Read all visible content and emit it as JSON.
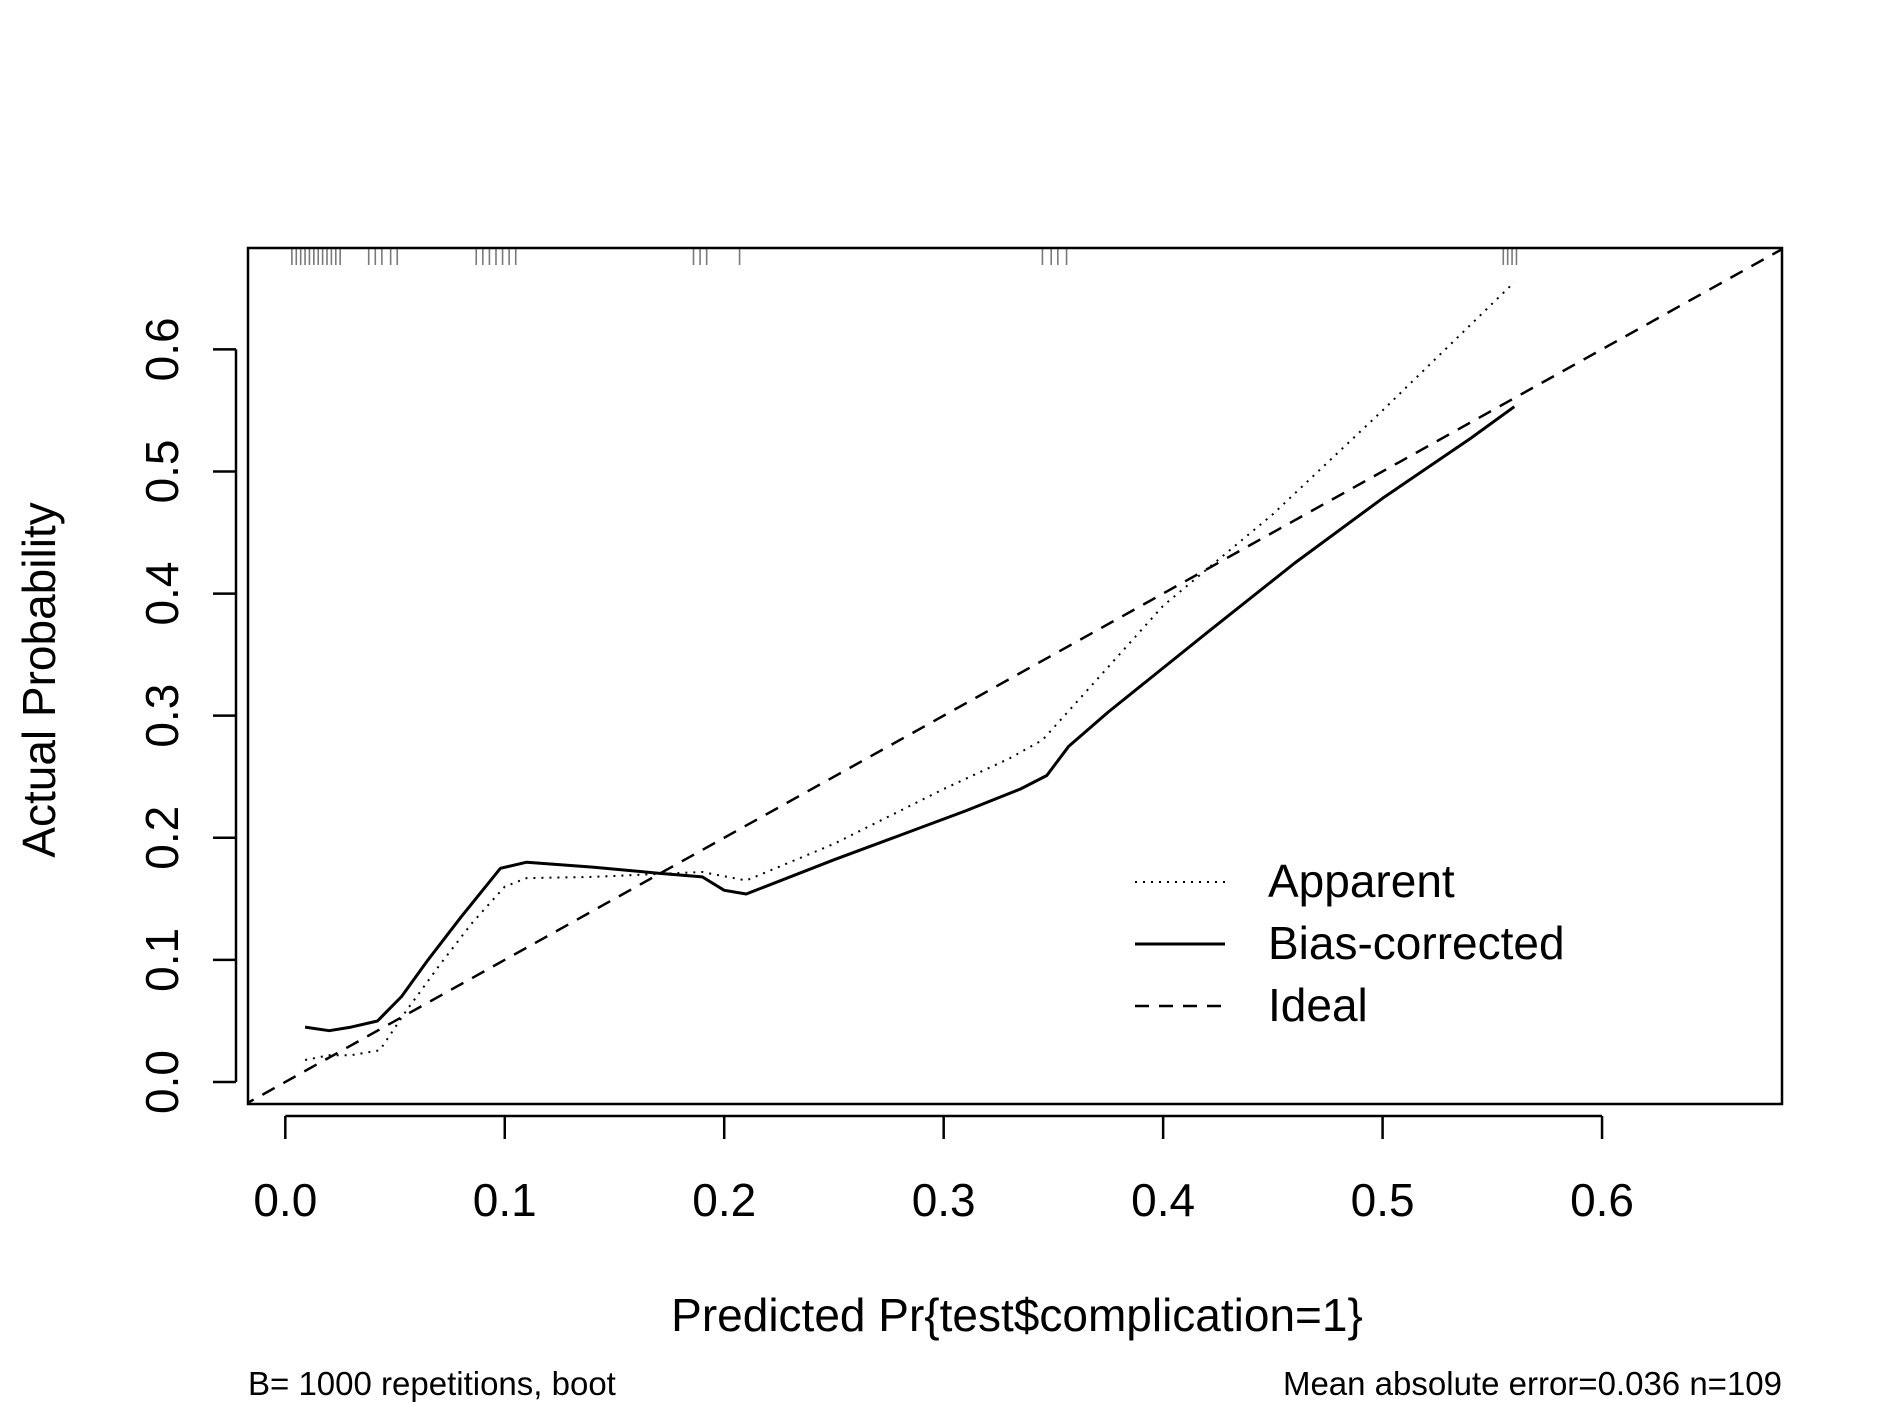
{
  "chart_data": {
    "type": "line",
    "title": "",
    "xlabel": "Predicted Pr{test$complication=1}",
    "ylabel": "Actual Probability",
    "xlim": [
      -0.017,
      0.682
    ],
    "ylim": [
      -0.018,
      0.683
    ],
    "x_ticks": [
      0.0,
      0.1,
      0.2,
      0.3,
      0.4,
      0.5,
      0.6
    ],
    "x_tick_labels": [
      "0.0",
      "0.1",
      "0.2",
      "0.3",
      "0.4",
      "0.5",
      "0.6"
    ],
    "y_ticks": [
      0.0,
      0.1,
      0.2,
      0.3,
      0.4,
      0.5,
      0.6
    ],
    "y_tick_labels": [
      "0.0",
      "0.1",
      "0.2",
      "0.3",
      "0.4",
      "0.5",
      "0.6"
    ],
    "grid": false,
    "legend_position": "bottom-right",
    "series": [
      {
        "name": "Apparent",
        "style": "dotted",
        "x": [
          0.009,
          0.02,
          0.03,
          0.043,
          0.055,
          0.07,
          0.085,
          0.1,
          0.11,
          0.14,
          0.19,
          0.21,
          0.25,
          0.3,
          0.33,
          0.345,
          0.36,
          0.4,
          0.45,
          0.5,
          0.56
        ],
        "y": [
          0.018,
          0.022,
          0.022,
          0.026,
          0.058,
          0.095,
          0.13,
          0.16,
          0.167,
          0.168,
          0.172,
          0.165,
          0.195,
          0.24,
          0.265,
          0.28,
          0.31,
          0.39,
          0.465,
          0.55,
          0.655
        ]
      },
      {
        "name": "Bias-corrected",
        "style": "solid",
        "x": [
          0.009,
          0.02,
          0.03,
          0.042,
          0.053,
          0.065,
          0.08,
          0.098,
          0.11,
          0.14,
          0.17,
          0.19,
          0.2,
          0.21,
          0.25,
          0.28,
          0.31,
          0.335,
          0.347,
          0.357,
          0.375,
          0.42,
          0.46,
          0.5,
          0.54,
          0.56
        ],
        "y": [
          0.045,
          0.042,
          0.045,
          0.05,
          0.07,
          0.1,
          0.135,
          0.175,
          0.18,
          0.176,
          0.171,
          0.168,
          0.157,
          0.154,
          0.182,
          0.202,
          0.222,
          0.24,
          0.251,
          0.275,
          0.303,
          0.368,
          0.425,
          0.478,
          0.527,
          0.553
        ]
      },
      {
        "name": "Ideal",
        "style": "dashed",
        "x": [
          -0.02,
          0.7
        ],
        "y": [
          -0.02,
          0.7
        ]
      }
    ],
    "rug_x": [
      0.003,
      0.005,
      0.007,
      0.009,
      0.011,
      0.013,
      0.015,
      0.017,
      0.019,
      0.021,
      0.023,
      0.025,
      0.038,
      0.041,
      0.044,
      0.048,
      0.051,
      0.087,
      0.09,
      0.093,
      0.096,
      0.099,
      0.102,
      0.105,
      0.186,
      0.189,
      0.192,
      0.207,
      0.345,
      0.349,
      0.352,
      0.356,
      0.555,
      0.557,
      0.559,
      0.561
    ],
    "footnote_left": "B= 1000 repetitions, boot",
    "footnote_right": "Mean absolute error=0.036 n=109"
  }
}
